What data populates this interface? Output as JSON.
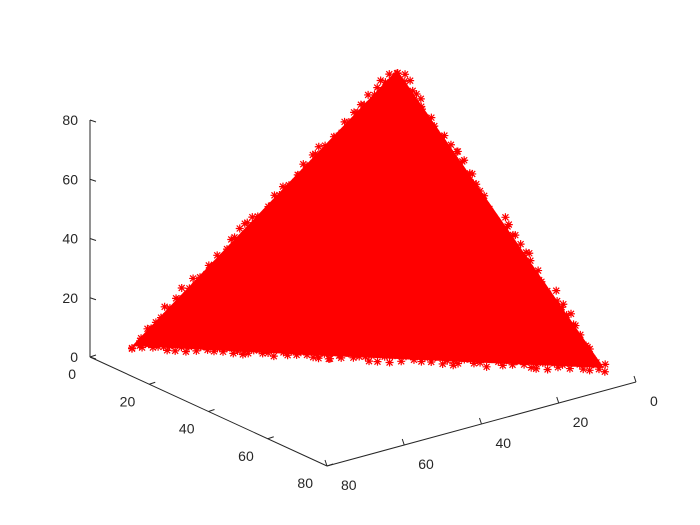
{
  "chart_data": {
    "type": "scatter",
    "marker": "*",
    "color": "#ff0000",
    "title": "",
    "xlabel": "",
    "ylabel": "",
    "zlabel": "",
    "grid": false,
    "x_axis": {
      "lim": [
        0,
        80
      ],
      "ticks": [
        "0",
        "20",
        "40",
        "60",
        "80"
      ]
    },
    "y_axis": {
      "lim": [
        0,
        80
      ],
      "ticks": [
        "0",
        "20",
        "40",
        "60",
        "80"
      ]
    },
    "z_axis": {
      "lim": [
        0,
        80
      ],
      "ticks": [
        "0",
        "20",
        "40",
        "60",
        "80"
      ]
    },
    "series": [
      {
        "shape": "tetrahedron",
        "vertices": [
          {
            "x": 0,
            "y": 0,
            "z": 0
          },
          {
            "x": 80,
            "y": 0,
            "z": 0
          },
          {
            "x": 0,
            "y": 80,
            "z": 0
          },
          {
            "x": 0,
            "y": 0,
            "z": 80
          }
        ]
      }
    ]
  }
}
